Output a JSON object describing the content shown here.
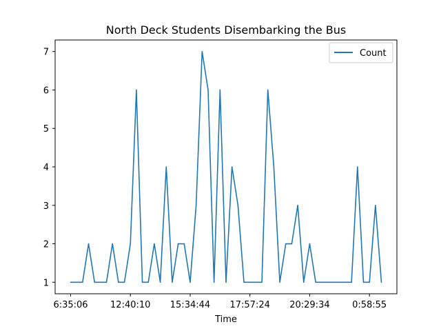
{
  "chart_data": {
    "type": "line",
    "title": "North Deck Students Disembarking the Bus",
    "xlabel": "Time",
    "ylabel": "",
    "x_tick_labels": [
      "6:35:06",
      "12:40:10",
      "15:34:44",
      "17:57:24",
      "20:29:34",
      "0:58:55"
    ],
    "y_ticks": [
      1,
      2,
      3,
      4,
      5,
      6,
      7
    ],
    "ylim": [
      0.7,
      7.3
    ],
    "grid": false,
    "legend": "top-right",
    "series": [
      {
        "name": "Count",
        "color": "#1f77b4",
        "values": [
          1,
          1,
          1,
          2,
          1,
          1,
          1,
          2,
          1,
          1,
          2,
          6,
          1,
          1,
          2,
          1,
          4,
          1,
          2,
          2,
          1,
          3,
          7,
          6,
          1,
          6,
          1,
          4,
          3,
          1,
          1,
          1,
          1,
          6,
          4,
          1,
          2,
          2,
          3,
          1,
          2,
          1,
          1,
          1,
          1,
          1,
          1,
          1,
          4,
          1,
          1,
          3,
          1
        ]
      }
    ]
  }
}
